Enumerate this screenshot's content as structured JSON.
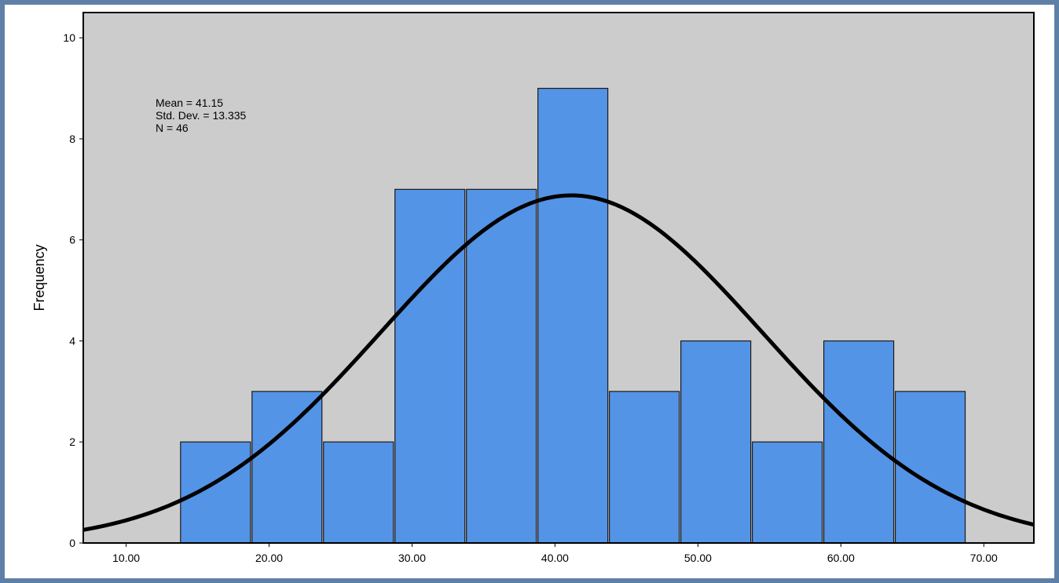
{
  "chart_data": {
    "type": "bar",
    "subtype": "histogram",
    "title": "",
    "xlabel": "",
    "ylabel": "Frequency",
    "xlim": [
      7.0,
      73.5
    ],
    "ylim": [
      0,
      10.5
    ],
    "x_ticks": [
      {
        "value": 10,
        "label": "10.00"
      },
      {
        "value": 20,
        "label": "20.00"
      },
      {
        "value": 30,
        "label": "30.00"
      },
      {
        "value": 40,
        "label": "40.00"
      },
      {
        "value": 50,
        "label": "50.00"
      },
      {
        "value": 60,
        "label": "60.00"
      },
      {
        "value": 70,
        "label": "70.00"
      }
    ],
    "y_ticks": [
      {
        "value": 0,
        "label": "0"
      },
      {
        "value": 2,
        "label": "2"
      },
      {
        "value": 4,
        "label": "4"
      },
      {
        "value": 6,
        "label": "6"
      },
      {
        "value": 8,
        "label": "8"
      },
      {
        "value": 10,
        "label": "10"
      }
    ],
    "bins": [
      {
        "start": 13.75,
        "end": 18.75,
        "count": 2
      },
      {
        "start": 18.75,
        "end": 23.75,
        "count": 3
      },
      {
        "start": 23.75,
        "end": 28.75,
        "count": 2
      },
      {
        "start": 28.75,
        "end": 33.75,
        "count": 7
      },
      {
        "start": 33.75,
        "end": 38.75,
        "count": 7
      },
      {
        "start": 38.75,
        "end": 43.75,
        "count": 9
      },
      {
        "start": 43.75,
        "end": 48.75,
        "count": 3
      },
      {
        "start": 48.75,
        "end": 53.75,
        "count": 4
      },
      {
        "start": 53.75,
        "end": 58.75,
        "count": 2
      },
      {
        "start": 58.75,
        "end": 63.75,
        "count": 4
      },
      {
        "start": 63.75,
        "end": 68.75,
        "count": 3
      }
    ],
    "normal_curve": {
      "mean": 41.15,
      "std_dev": 13.335,
      "n": 46,
      "bin_width": 5
    },
    "stats_box": {
      "mean_label": "Mean = 41.15",
      "std_label": "Std. Dev. = 13.335",
      "n_label": "N = 46"
    },
    "grid": false,
    "colors": {
      "plot_background": "#cccccc",
      "bar_fill": "#5494e6",
      "bar_stroke": "#1a1a1a",
      "curve": "#000000"
    }
  }
}
